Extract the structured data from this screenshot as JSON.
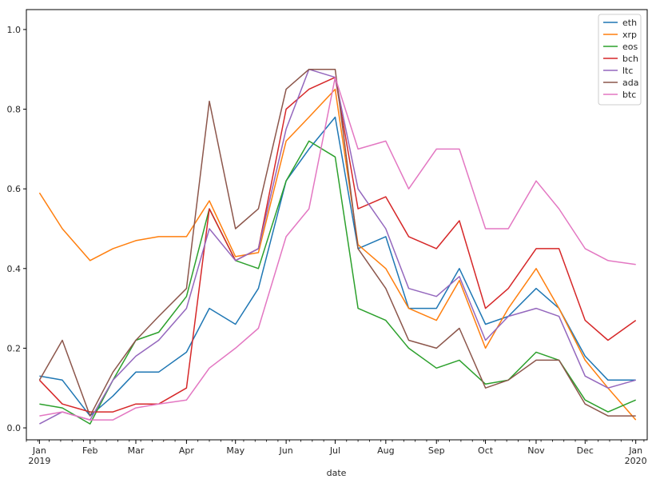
{
  "chart_data": {
    "type": "line",
    "title": "",
    "xlabel": "date",
    "ylabel": "",
    "xlim": [
      "2018-12-24",
      "2020-01-08"
    ],
    "ylim": [
      -0.03,
      1.05
    ],
    "y_ticks": [
      0.0,
      0.2,
      0.4,
      0.6,
      0.8,
      1.0
    ],
    "x_ticks": [
      {
        "date": "2019-01-01",
        "label": "Jan",
        "sublabel": "2019"
      },
      {
        "date": "2019-02-01",
        "label": "Feb",
        "sublabel": ""
      },
      {
        "date": "2019-03-01",
        "label": "Mar",
        "sublabel": ""
      },
      {
        "date": "2019-04-01",
        "label": "Apr",
        "sublabel": ""
      },
      {
        "date": "2019-05-01",
        "label": "May",
        "sublabel": ""
      },
      {
        "date": "2019-06-01",
        "label": "Jun",
        "sublabel": ""
      },
      {
        "date": "2019-07-01",
        "label": "Jul",
        "sublabel": ""
      },
      {
        "date": "2019-08-01",
        "label": "Aug",
        "sublabel": ""
      },
      {
        "date": "2019-09-01",
        "label": "Sep",
        "sublabel": ""
      },
      {
        "date": "2019-10-01",
        "label": "Oct",
        "sublabel": ""
      },
      {
        "date": "2019-11-01",
        "label": "Nov",
        "sublabel": ""
      },
      {
        "date": "2019-12-01",
        "label": "Dec",
        "sublabel": ""
      },
      {
        "date": "2020-01-01",
        "label": "Jan",
        "sublabel": "2020"
      }
    ],
    "grid": false,
    "legend_position": "top-right",
    "x": [
      "2019-01-01",
      "2019-01-15",
      "2019-02-01",
      "2019-02-15",
      "2019-03-01",
      "2019-03-15",
      "2019-04-01",
      "2019-04-15",
      "2019-05-01",
      "2019-05-15",
      "2019-06-01",
      "2019-06-15",
      "2019-07-01",
      "2019-07-15",
      "2019-08-01",
      "2019-08-15",
      "2019-09-01",
      "2019-09-15",
      "2019-10-01",
      "2019-10-15",
      "2019-11-01",
      "2019-11-15",
      "2019-12-01",
      "2019-12-15",
      "2020-01-01"
    ],
    "series": [
      {
        "name": "eth",
        "color": "#1f77b4",
        "values": [
          0.13,
          0.12,
          0.03,
          0.08,
          0.14,
          0.14,
          0.19,
          0.3,
          0.26,
          0.35,
          0.62,
          0.7,
          0.78,
          0.45,
          0.48,
          0.3,
          0.3,
          0.4,
          0.26,
          0.28,
          0.35,
          0.3,
          0.18,
          0.12,
          0.12
        ]
      },
      {
        "name": "xrp",
        "color": "#ff7f0e",
        "values": [
          0.59,
          0.5,
          0.42,
          0.45,
          0.47,
          0.48,
          0.48,
          0.57,
          0.43,
          0.44,
          0.72,
          0.78,
          0.85,
          0.46,
          0.4,
          0.3,
          0.27,
          0.37,
          0.2,
          0.3,
          0.4,
          0.3,
          0.17,
          0.1,
          0.02
        ]
      },
      {
        "name": "eos",
        "color": "#2ca02c",
        "values": [
          0.06,
          0.05,
          0.01,
          0.12,
          0.22,
          0.24,
          0.33,
          0.55,
          0.42,
          0.4,
          0.62,
          0.72,
          0.68,
          0.3,
          0.27,
          0.2,
          0.15,
          0.17,
          0.11,
          0.12,
          0.19,
          0.17,
          0.07,
          0.04,
          0.07
        ]
      },
      {
        "name": "bch",
        "color": "#d62728",
        "values": [
          0.12,
          0.06,
          0.04,
          0.04,
          0.06,
          0.06,
          0.1,
          0.55,
          0.42,
          0.45,
          0.8,
          0.85,
          0.88,
          0.55,
          0.58,
          0.48,
          0.45,
          0.52,
          0.3,
          0.35,
          0.45,
          0.45,
          0.27,
          0.22,
          0.27
        ]
      },
      {
        "name": "ltc",
        "color": "#9467bd",
        "values": [
          0.01,
          0.04,
          0.02,
          0.12,
          0.18,
          0.22,
          0.3,
          0.5,
          0.42,
          0.45,
          0.75,
          0.9,
          0.88,
          0.6,
          0.5,
          0.35,
          0.33,
          0.38,
          0.22,
          0.28,
          0.3,
          0.28,
          0.13,
          0.1,
          0.12
        ]
      },
      {
        "name": "ada",
        "color": "#8c564b",
        "values": [
          0.12,
          0.22,
          0.03,
          0.14,
          0.22,
          0.28,
          0.35,
          0.82,
          0.5,
          0.55,
          0.85,
          0.9,
          0.9,
          0.45,
          0.35,
          0.22,
          0.2,
          0.25,
          0.1,
          0.12,
          0.17,
          0.17,
          0.06,
          0.03,
          0.03
        ]
      },
      {
        "name": "btc",
        "color": "#e377c2",
        "values": [
          0.03,
          0.04,
          0.02,
          0.02,
          0.05,
          0.06,
          0.07,
          0.15,
          0.2,
          0.25,
          0.48,
          0.55,
          0.88,
          0.7,
          0.72,
          0.6,
          0.7,
          0.7,
          0.5,
          0.5,
          0.62,
          0.55,
          0.45,
          0.42,
          0.41
        ]
      }
    ]
  }
}
